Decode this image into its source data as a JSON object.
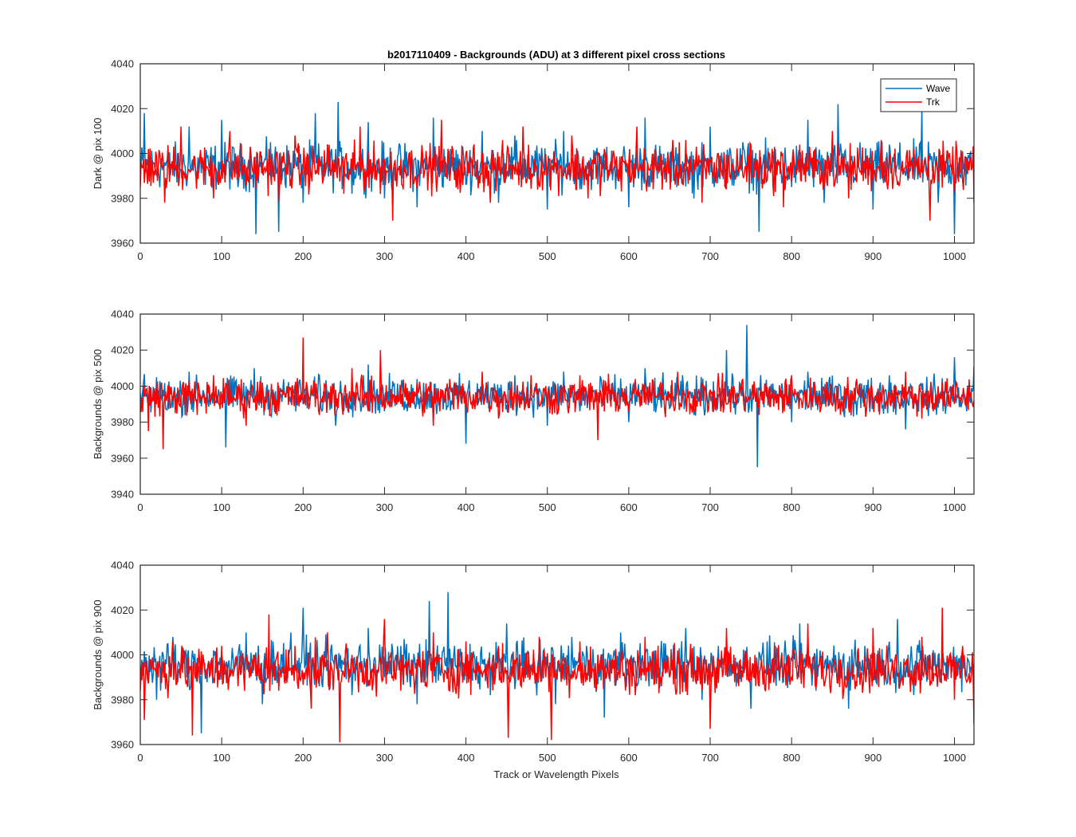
{
  "chart_data": {
    "type": "line",
    "title": "b2017110409 - Backgrounds (ADU) at 3 different pixel cross sections",
    "xlabel": "Track or Wavelength Pixels",
    "xlim": [
      0,
      1024
    ],
    "xticks": [
      0,
      100,
      200,
      300,
      400,
      500,
      600,
      700,
      800,
      900,
      1000
    ],
    "legend": {
      "location": "top-right",
      "entries": [
        "Wave",
        "Trk"
      ]
    },
    "colors": {
      "Wave": "#0072bd",
      "Trk": "#ff0000"
    },
    "grid": false,
    "note": "Each series is noisy per-pixel background data (1024 points); the values below are approximate samples read from the plot.",
    "panels": [
      {
        "ylabel": "Dark @ pix 100",
        "ylim": [
          3960,
          4040
        ],
        "yticks": [
          3960,
          3980,
          4000,
          4020,
          4040
        ],
        "series": [
          {
            "name": "Wave",
            "color": "#0072bd",
            "x": [
              0,
              5,
              20,
              40,
              60,
              80,
              100,
              120,
              142,
              160,
              170,
              190,
              200,
              215,
              243,
              260,
              280,
              300,
              320,
              340,
              360,
              380,
              400,
              420,
              440,
              460,
              480,
              500,
              520,
              540,
              560,
              580,
              600,
              620,
              640,
              660,
              680,
              700,
              720,
              740,
              760,
              780,
              800,
              820,
              840,
              857,
              880,
              900,
              920,
              940,
              960,
              980,
              1000,
              1010,
              1024
            ],
            "y": [
              3995,
              4018,
              3990,
              3996,
              4012,
              3986,
              4015,
              3985,
              3964,
              4005,
              3965,
              4000,
              3978,
              4018,
              4023,
              3982,
              4014,
              3980,
              3998,
              3976,
              4016,
              3990,
              3986,
              4010,
              3978,
              4008,
              3992,
              3975,
              4010,
              3984,
              4000,
              3988,
              3976,
              4016,
              3990,
              4000,
              3980,
              4012,
              3984,
              4005,
              3965,
              4002,
              3985,
              4015,
              3978,
              4022,
              3988,
              3975,
              4004,
              3990,
              4020,
              3978,
              3964,
              4001,
              3995
            ]
          },
          {
            "name": "Trk",
            "color": "#ff0000",
            "x": [
              0,
              10,
              30,
              50,
              70,
              90,
              110,
              130,
              150,
              170,
              190,
              210,
              230,
              250,
              270,
              290,
              310,
              330,
              350,
              370,
              390,
              410,
              430,
              450,
              470,
              490,
              510,
              530,
              550,
              570,
              590,
              610,
              630,
              650,
              670,
              690,
              710,
              730,
              750,
              770,
              790,
              810,
              830,
              850,
              870,
              890,
              910,
              930,
              950,
              970,
              990,
              1010,
              1024
            ],
            "y": [
              3985,
              4002,
              3978,
              4012,
              3992,
              3980,
              4010,
              3986,
              3996,
              3978,
              4008,
              3990,
              4004,
              3982,
              4012,
              3988,
              3970,
              4000,
              3994,
              4015,
              3984,
              4004,
              3978,
              3998,
              4012,
              3986,
              3996,
              4008,
              3980,
              4002,
              3990,
              4012,
              3984,
              3994,
              4006,
              3978,
              4000,
              3990,
              4004,
              3988,
              3976,
              4004,
              3992,
              4010,
              3980,
              3996,
              4006,
              3986,
              4002,
              3970,
              3996,
              3988,
              3978
            ]
          }
        ]
      },
      {
        "ylabel": "Backgrounds @ pix 500",
        "ylim": [
          3940,
          4040
        ],
        "yticks": [
          3940,
          3960,
          3980,
          4000,
          4020,
          4040
        ],
        "series": [
          {
            "name": "Wave",
            "color": "#0072bd",
            "x": [
              0,
              20,
              40,
              60,
              80,
              105,
              120,
              140,
              160,
              180,
              200,
              220,
              240,
              260,
              280,
              300,
              320,
              340,
              360,
              380,
              400,
              420,
              440,
              460,
              480,
              500,
              520,
              540,
              560,
              580,
              600,
              620,
              640,
              660,
              680,
              700,
              720,
              745,
              758,
              780,
              800,
              820,
              840,
              860,
              880,
              900,
              920,
              940,
              960,
              980,
              1000,
              1015,
              1024
            ],
            "y": [
              3996,
              4005,
              3988,
              4008,
              3992,
              3966,
              3996,
              4010,
              3984,
              4000,
              3990,
              4006,
              3978,
              3998,
              4012,
              3986,
              3996,
              4004,
              3980,
              3994,
              3968,
              4000,
              3988,
              4006,
              3992,
              3978,
              4008,
              3986,
              3996,
              4002,
              3980,
              4010,
              3988,
              4004,
              3984,
              3996,
              4020,
              4034,
              3955,
              3996,
              3980,
              4008,
              3990,
              4000,
              3984,
              3994,
              4006,
              3976,
              3998,
              3988,
              4016,
              3986,
              4011
            ]
          },
          {
            "name": "Trk",
            "color": "#ff0000",
            "x": [
              0,
              10,
              28,
              50,
              70,
              90,
              110,
              130,
              150,
              170,
              190,
              200,
              220,
              240,
              260,
              280,
              295,
              320,
              340,
              360,
              380,
              400,
              420,
              440,
              460,
              480,
              500,
              520,
              540,
              562,
              580,
              600,
              620,
              640,
              660,
              680,
              700,
              720,
              740,
              760,
              780,
              800,
              820,
              840,
              860,
              880,
              900,
              920,
              940,
              960,
              980,
              1000,
              1024
            ],
            "y": [
              3990,
              3975,
              3965,
              3995,
              3984,
              4006,
              3990,
              3978,
              4002,
              3986,
              4000,
              4027,
              3984,
              3998,
              4010,
              3986,
              4020,
              3990,
              4002,
              3978,
              4004,
              3990,
              4008,
              3982,
              3996,
              4006,
              3988,
              3998,
              4006,
              3970,
              3996,
              3986,
              4002,
              3992,
              4008,
              3986,
              3998,
              3990,
              4004,
              3984,
              3996,
              4006,
              3988,
              3998,
              3984,
              4004,
              3990,
              3996,
              4008,
              3982,
              4000,
              3990,
              3992
            ]
          }
        ]
      },
      {
        "ylabel": "Backgrounds @ pix 900",
        "ylim": [
          3960,
          4040
        ],
        "yticks": [
          3960,
          3980,
          4000,
          4020,
          4040
        ],
        "series": [
          {
            "name": "Wave",
            "color": "#0072bd",
            "x": [
              0,
              20,
              40,
              60,
              75,
              90,
              110,
              130,
              150,
              170,
              185,
              200,
              220,
              240,
              260,
              280,
              300,
              320,
              340,
              355,
              378,
              390,
              410,
              430,
              450,
              470,
              490,
              510,
              530,
              550,
              570,
              590,
              610,
              630,
              650,
              670,
              690,
              710,
              730,
              750,
              770,
              790,
              810,
              830,
              850,
              870,
              890,
              910,
              930,
              950,
              970,
              990,
              1010,
              1024
            ],
            "y": [
              3995,
              3980,
              4008,
              3986,
              3965,
              4002,
              3990,
              4010,
              3978,
              3996,
              4010,
              4021,
              3986,
              4000,
              3982,
              4012,
              3990,
              4004,
              3978,
              4024,
              4028,
              3986,
              4000,
              3982,
              4014,
              3990,
              4002,
              3978,
              4008,
              3994,
              3972,
              4010,
              3986,
              4000,
              3990,
              4012,
              3980,
              4004,
              3992,
              3976,
              4006,
              3988,
              4014,
              3984,
              3998,
              3976,
              4004,
              3992,
              4016,
              3982,
              4000,
              3990,
              4002,
              3996
            ]
          },
          {
            "name": "Trk",
            "color": "#ff0000",
            "x": [
              0,
              5,
              20,
              40,
              64,
              80,
              100,
              120,
              140,
              158,
              170,
              190,
              210,
              230,
              245,
              260,
              280,
              300,
              320,
              340,
              360,
              380,
              400,
              420,
              440,
              452,
              470,
              490,
              505,
              520,
              540,
              560,
              580,
              600,
              620,
              640,
              660,
              680,
              700,
              720,
              740,
              760,
              780,
              800,
              820,
              840,
              860,
              880,
              900,
              920,
              940,
              960,
              985,
              1000,
              1010,
              1024
            ],
            "y": [
              3984,
              3971,
              3992,
              4006,
              3964,
              3990,
              4004,
              3986,
              4000,
              4018,
              3984,
              4004,
              3976,
              4010,
              3961,
              4000,
              3986,
              4016,
              3984,
              3998,
              4010,
              3984,
              4006,
              3990,
              4004,
              3963,
              3994,
              4008,
              3962,
              3996,
              4006,
              3984,
              3998,
              3990,
              4008,
              3986,
              4002,
              3992,
              3967,
              4012,
              3990,
              3986,
              4004,
              3990,
              4014,
              3986,
              3998,
              3986,
              4012,
              3990,
              3996,
              4008,
              4021,
              3980,
              4004,
              3969
            ]
          }
        ]
      }
    ]
  }
}
